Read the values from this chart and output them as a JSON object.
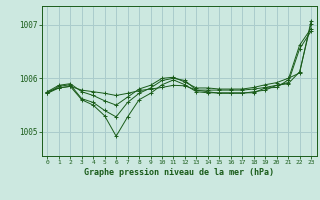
{
  "background_color": "#cce8e0",
  "grid_color": "#aacccc",
  "line_color": "#1a5c1a",
  "marker_color": "#1a5c1a",
  "title": "Graphe pression niveau de la mer (hPa)",
  "xlim": [
    -0.5,
    23.5
  ],
  "ylim": [
    1004.55,
    1007.35
  ],
  "yticks": [
    1005,
    1006,
    1007
  ],
  "xticks": [
    0,
    1,
    2,
    3,
    4,
    5,
    6,
    7,
    8,
    9,
    10,
    11,
    12,
    13,
    14,
    15,
    16,
    17,
    18,
    19,
    20,
    21,
    22,
    23
  ],
  "series": [
    [
      1005.75,
      1005.82,
      1005.85,
      1005.78,
      1005.75,
      1005.72,
      1005.68,
      1005.72,
      1005.77,
      1005.8,
      1005.83,
      1005.87,
      1005.86,
      1005.78,
      1005.78,
      1005.78,
      1005.78,
      1005.78,
      1005.8,
      1005.83,
      1005.87,
      1005.9,
      1006.12,
      1007.02
    ],
    [
      1005.72,
      1005.82,
      1005.85,
      1005.6,
      1005.5,
      1005.3,
      1004.92,
      1005.28,
      1005.6,
      1005.72,
      1005.88,
      1005.97,
      1005.88,
      1005.75,
      1005.73,
      1005.73,
      1005.73,
      1005.73,
      1005.73,
      1005.82,
      1005.83,
      1005.97,
      1006.62,
      1006.93
    ],
    [
      1005.75,
      1005.87,
      1005.9,
      1005.75,
      1005.68,
      1005.58,
      1005.5,
      1005.65,
      1005.8,
      1005.87,
      1006.0,
      1006.02,
      1005.93,
      1005.82,
      1005.82,
      1005.8,
      1005.8,
      1005.8,
      1005.83,
      1005.88,
      1005.92,
      1006.0,
      1006.1,
      1007.07
    ],
    [
      1005.72,
      1005.85,
      1005.88,
      1005.62,
      1005.55,
      1005.4,
      1005.28,
      1005.55,
      1005.72,
      1005.82,
      1005.96,
      1006.0,
      1005.96,
      1005.78,
      1005.75,
      1005.72,
      1005.72,
      1005.72,
      1005.75,
      1005.78,
      1005.87,
      1005.92,
      1006.55,
      1006.88
    ]
  ]
}
